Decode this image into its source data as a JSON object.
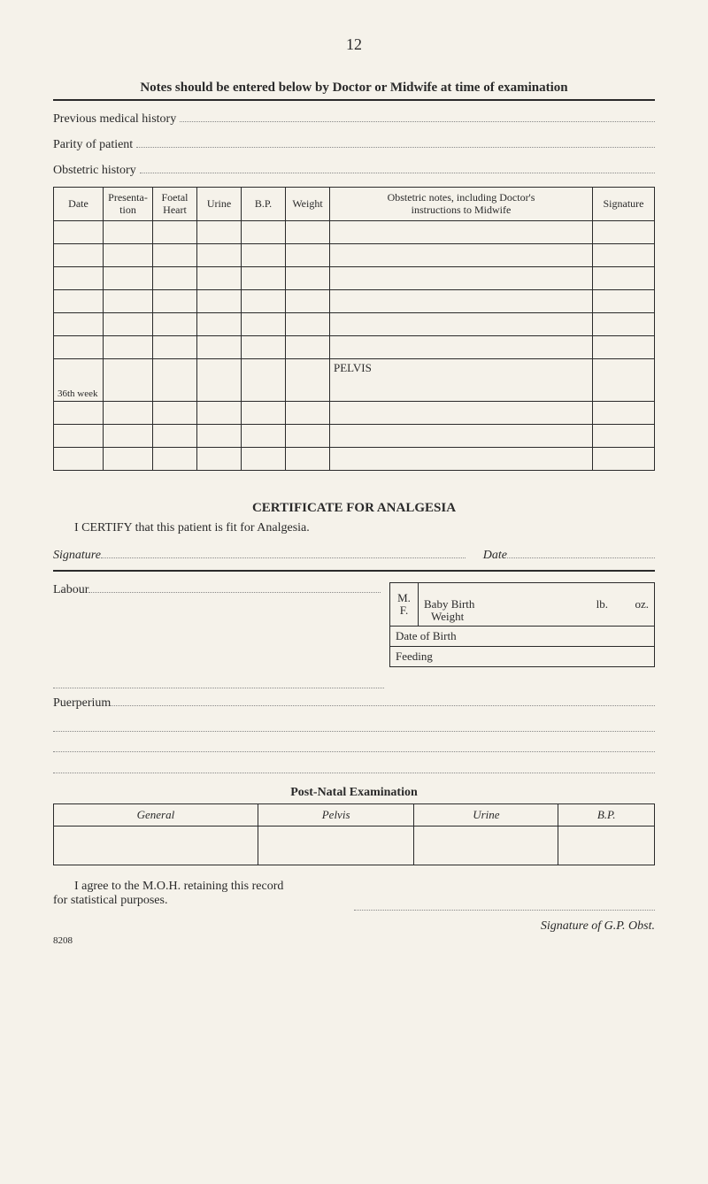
{
  "page_number": "12",
  "heading": "Notes should be entered below by Doctor or Midwife at time of examination",
  "fields": {
    "previous_history": "Previous medical history",
    "parity": "Parity of patient",
    "obstetric_history": "Obstetric history"
  },
  "main_table": {
    "headers": {
      "date": "Date",
      "presentation": "Presenta-\ntion",
      "foetal_heart": "Foetal\nHeart",
      "urine": "Urine",
      "bp": "B.P.",
      "weight": "Weight",
      "notes": "Obstetric notes, including Doctor's\ninstructions to Midwife",
      "signature": "Signature"
    },
    "pelvis_label": "PELVIS",
    "week36_label": "36th week",
    "blank_rows_before": 6,
    "blank_rows_after": 3
  },
  "certificate": {
    "title": "CERTIFICATE FOR ANALGESIA",
    "body": "I CERTIFY that this patient is fit for Analgesia.",
    "signature_label": "Signature",
    "date_label": "Date"
  },
  "labour": {
    "label": "Labour",
    "birth": {
      "mf_m": "M.",
      "mf_f": "F.",
      "baby_birth": "Baby Birth",
      "weight": "Weight",
      "lb": "lb.",
      "oz": "oz.",
      "dob": "Date of Birth",
      "feeding": "Feeding"
    }
  },
  "puerperium_label": "Puerperium",
  "postnatal": {
    "title": "Post-Natal Examination",
    "headers": {
      "general": "General",
      "pelvis": "Pelvis",
      "urine": "Urine",
      "bp": "B.P."
    }
  },
  "agree": {
    "text1": "I agree to the M.O.H. retaining this record",
    "text2": "for statistical purposes.",
    "signature": "Signature of G.P. Obst."
  },
  "ref": "8208"
}
